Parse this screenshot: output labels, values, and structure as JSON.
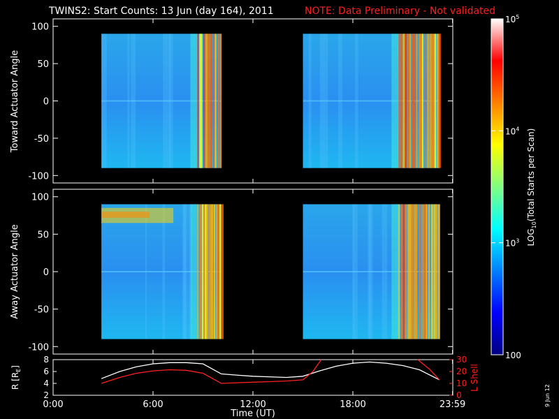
{
  "header": {
    "title": "TWINS2: Start Counts: 13 Jun (day 164), 2011",
    "note": "NOTE: Data Preliminary - Not validated"
  },
  "footer": {
    "date_stamp": "9 Jun 12"
  },
  "colors": {
    "background": "#000000",
    "axis": "#ffffff",
    "note": "#ff1e1e",
    "r_line": "#ffffff",
    "l_shell_line": "#ff2020"
  },
  "chart_data": [
    {
      "type": "heatmap",
      "ylabel": "Toward Actuator Angle",
      "ylim": [
        -110,
        110
      ],
      "yticks": [
        100,
        50,
        0,
        -50,
        -100
      ],
      "ytick_labels": [
        "100",
        "50",
        "0",
        "-50",
        "-100"
      ],
      "xlim": [
        0,
        24
      ],
      "scan_blocks": [
        {
          "start_ut": 2.9,
          "end_ut": 10.1,
          "angle_range": [
            -90,
            90
          ]
        },
        {
          "start_ut": 15.0,
          "end_ut": 23.2,
          "angle_range": [
            -90,
            90
          ]
        }
      ]
    },
    {
      "type": "heatmap",
      "ylabel": "Away Actuator Angle",
      "ylim": [
        -110,
        110
      ],
      "yticks": [
        100,
        50,
        0,
        -50,
        -100
      ],
      "ytick_labels": [
        "100",
        "50",
        "0",
        "-50",
        "-100"
      ],
      "xlim": [
        0,
        24
      ],
      "scan_blocks": [
        {
          "start_ut": 2.9,
          "end_ut": 10.1,
          "angle_range": [
            -90,
            90
          ]
        },
        {
          "start_ut": 15.0,
          "end_ut": 23.2,
          "angle_range": [
            -90,
            90
          ]
        }
      ]
    },
    {
      "type": "line",
      "ylabel": "R [RE]",
      "ylabel_main": "R [R",
      "ylabel_sub": "E",
      "ylabel_end": "]",
      "ylim": [
        2,
        8
      ],
      "yticks": [
        2,
        4,
        6,
        8
      ],
      "ytick_labels": [
        "2",
        "4",
        "6",
        "8"
      ],
      "y2label": "L Shell",
      "y2lim": [
        0,
        30
      ],
      "y2ticks": [
        0,
        10,
        20,
        30
      ],
      "y2tick_labels": [
        "0",
        "10",
        "20",
        "30"
      ],
      "xlim": [
        0,
        24
      ],
      "xticks": [
        0,
        6,
        12,
        18,
        23.983
      ],
      "xtick_labels": [
        "0:00",
        "6:00",
        "12:00",
        "18:00",
        "23:59"
      ],
      "xlabel": "Time (UT)",
      "series": [
        {
          "axis": "left",
          "x": [
            2.9,
            4,
            5,
            6,
            7,
            8,
            9,
            10.1,
            11,
            12,
            13,
            14,
            15,
            16,
            17,
            18,
            19,
            20,
            21,
            22,
            23.2
          ],
          "y": [
            4.8,
            6.0,
            6.8,
            7.3,
            7.5,
            7.5,
            7.3,
            5.6,
            5.4,
            5.2,
            5.1,
            5.0,
            5.2,
            6.1,
            6.9,
            7.4,
            7.6,
            7.4,
            7.0,
            6.3,
            4.6
          ]
        },
        {
          "axis": "right",
          "x": [
            2.9,
            4,
            5,
            6,
            7,
            8,
            9,
            10.1,
            11,
            12,
            13,
            14,
            15,
            15.6,
            16.1
          ],
          "y": [
            10,
            15,
            18.5,
            20.5,
            21.5,
            21,
            18.5,
            10,
            10.5,
            11,
            11.5,
            12,
            13,
            20,
            30
          ]
        },
        {
          "axis": "right",
          "x": [
            21.9,
            22.6,
            23.2
          ],
          "y": [
            30,
            22,
            13
          ]
        }
      ]
    }
  ],
  "colorbar": {
    "label_main": "LOG",
    "label_sub": "10",
    "label_end": "(Total Starts per Scan)",
    "min": 100,
    "max": 100000,
    "scale": "log",
    "ticks": [
      {
        "value": 100000,
        "base": "10",
        "exp": "5"
      },
      {
        "value": 10000,
        "base": "10",
        "exp": "4"
      },
      {
        "value": 1000,
        "base": "10",
        "exp": "3"
      },
      {
        "value": 100,
        "text": "100"
      }
    ],
    "stops": [
      "#000080",
      "#0000ff",
      "#0080ff",
      "#00ffff",
      "#80ff80",
      "#ffff00",
      "#ff8000",
      "#ff0000",
      "#ffffff"
    ]
  }
}
